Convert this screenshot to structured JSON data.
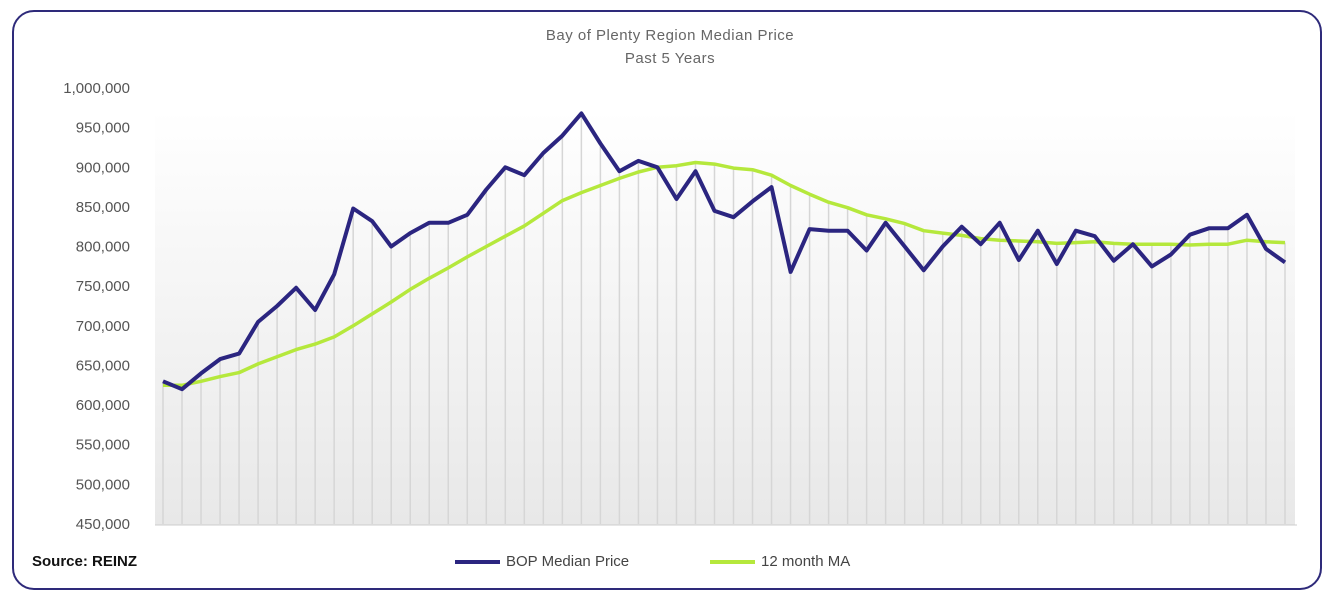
{
  "chart_data": {
    "type": "line",
    "title": "Bay of Plenty Region Median Price",
    "subtitle": "Past 5 Years",
    "xlabel": "",
    "ylabel": "",
    "ylim": [
      450000,
      1000000
    ],
    "yticks": [
      "1,000,000",
      "950,000",
      "900,000",
      "850,000",
      "800,000",
      "750,000",
      "700,000",
      "650,000",
      "600,000",
      "550,000",
      "500,000",
      "450,000"
    ],
    "ytick_values": [
      1000000,
      950000,
      900000,
      850000,
      800000,
      750000,
      700000,
      650000,
      600000,
      550000,
      500000,
      450000
    ],
    "grid": false,
    "legend_position": "bottom",
    "series": [
      {
        "name": "BOP Median Price",
        "color": "#2b2580",
        "values": [
          630000,
          620000,
          640000,
          658000,
          665000,
          705000,
          725000,
          748000,
          720000,
          765000,
          848000,
          832000,
          800000,
          817000,
          830000,
          830000,
          840000,
          872000,
          900000,
          890000,
          918000,
          940000,
          968000,
          930000,
          895000,
          908000,
          900000,
          860000,
          895000,
          845000,
          837000,
          857000,
          875000,
          768000,
          822000,
          820000,
          820000,
          795000,
          830000,
          800000,
          770000,
          800000,
          825000,
          803000,
          830000,
          783000,
          820000,
          778000,
          820000,
          813000,
          782000,
          803000,
          775000,
          790000,
          815000,
          823000,
          823000,
          840000,
          797000,
          780000
        ]
      },
      {
        "name": "12 month MA",
        "color": "#b5e83c",
        "values": [
          625000,
          625000,
          630000,
          636000,
          641000,
          652000,
          661000,
          670000,
          677000,
          686000,
          700000,
          715000,
          730000,
          746000,
          760000,
          773000,
          787000,
          800000,
          813000,
          826000,
          842000,
          858000,
          868000,
          877000,
          886000,
          894000,
          900000,
          902000,
          906000,
          904000,
          899000,
          897000,
          890000,
          877000,
          866000,
          856000,
          849000,
          840000,
          835000,
          829000,
          820000,
          817000,
          814000,
          810000,
          808000,
          807000,
          806000,
          804000,
          805000,
          806000,
          804000,
          803000,
          803000,
          803000,
          802000,
          803000,
          803000,
          808000,
          806000,
          805000
        ]
      }
    ],
    "source": "Source: REINZ"
  }
}
